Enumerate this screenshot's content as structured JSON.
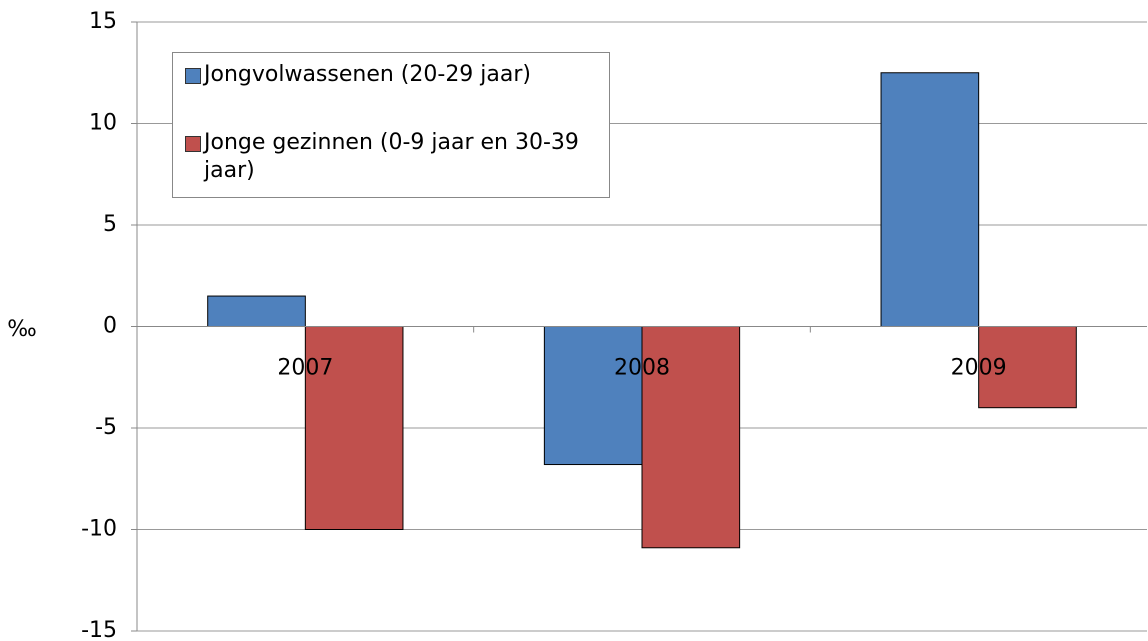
{
  "chart_data": {
    "type": "bar",
    "ylabel": "‰",
    "categories": [
      "2007",
      "2008",
      "2009"
    ],
    "series": [
      {
        "name": "Jongvolwassenen (20-29 jaar)",
        "color": "#4f81bd",
        "values": [
          1.5,
          -6.8,
          12.5
        ]
      },
      {
        "name": "Jonge gezinnen (0-9 jaar en 30-39 jaar)",
        "color": "#c0504d",
        "values": [
          -10,
          -10.9,
          -4
        ]
      }
    ],
    "ylim": [
      -15,
      15
    ],
    "yticks": [
      -15,
      -10,
      -5,
      0,
      5,
      10,
      15
    ],
    "grid": true,
    "legend": "upper left"
  }
}
